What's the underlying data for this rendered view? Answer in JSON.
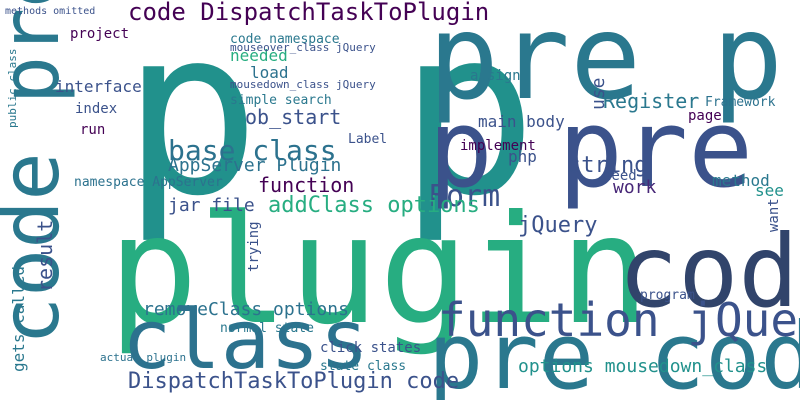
{
  "words": [
    "p p",
    "pre p",
    "p pre",
    "plugin",
    "code pre",
    "code",
    "pre code",
    "class",
    "function jQuery",
    "Form",
    "code DispatchTaskToPlugin",
    "DispatchTaskToPlugin code",
    "base class",
    "addClass options",
    "jQuery",
    "function",
    "removeClass options",
    "options mousedown_class",
    "AppServer Plugin",
    "string",
    "Register",
    "work",
    "main body",
    "jar file",
    "result",
    "gets called",
    "load",
    "needed",
    "ob_start",
    "simple search",
    "interface",
    "project",
    "run",
    "index",
    "php",
    "implement",
    "assign",
    "method",
    "want",
    "see",
    "need",
    "Label",
    "page",
    "Framework",
    "normal state",
    "click states",
    "state class",
    "trying",
    "program",
    "namespace AppServer",
    "code namespace",
    "mouseover_class jQuery",
    "mousedown_class jQuery",
    "actual plugin",
    "use",
    "public class",
    "methods omitted"
  ]
}
